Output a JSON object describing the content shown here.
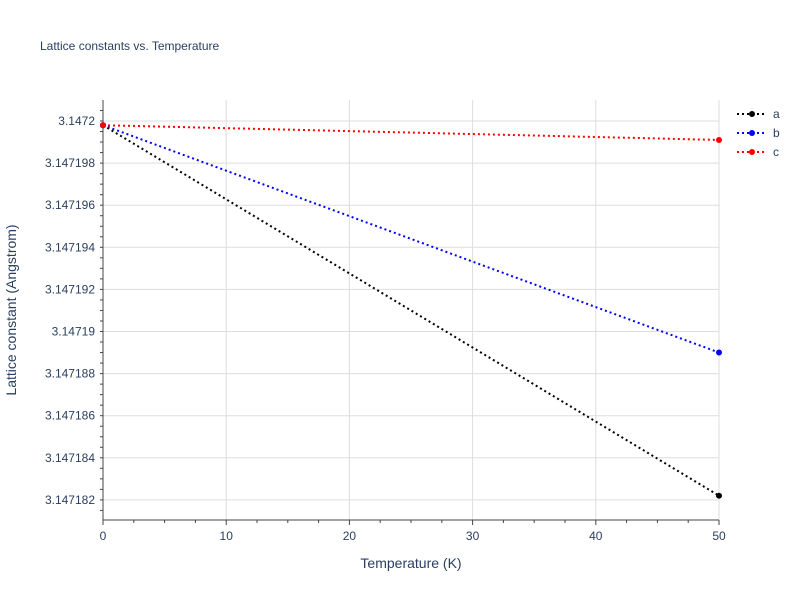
{
  "chart_data": {
    "type": "line",
    "title": "Lattice constants vs. Temperature",
    "xlabel": "Temperature (K)",
    "ylabel": "Lattice constant (Angstrom)",
    "xlim": [
      0,
      50
    ],
    "ylim": [
      3.1471811,
      3.1472005
    ],
    "x_ticks": [
      0,
      10,
      20,
      30,
      40,
      50
    ],
    "x_tick_labels": [
      "0",
      "10",
      "20",
      "30",
      "40",
      "50"
    ],
    "y_ticks": [
      3.147182,
      3.147184,
      3.147186,
      3.147188,
      3.14719,
      3.147192,
      3.147194,
      3.147196,
      3.147198,
      3.1472
    ],
    "y_tick_labels": [
      "3.147182",
      "3.147184",
      "3.147186",
      "3.147188",
      "3.14719",
      "3.147192",
      "3.147194",
      "3.147196",
      "3.147198",
      "3.1472"
    ],
    "grid": true,
    "legend_position": "top-right",
    "x": [
      0,
      50
    ],
    "series": [
      {
        "name": "a",
        "color": "#000000",
        "values": [
          3.1471998,
          3.1471822
        ]
      },
      {
        "name": "b",
        "color": "#0000ff",
        "values": [
          3.1471998,
          3.147189
        ]
      },
      {
        "name": "c",
        "color": "#ff0000",
        "values": [
          3.1471998,
          3.1471991
        ]
      }
    ]
  }
}
